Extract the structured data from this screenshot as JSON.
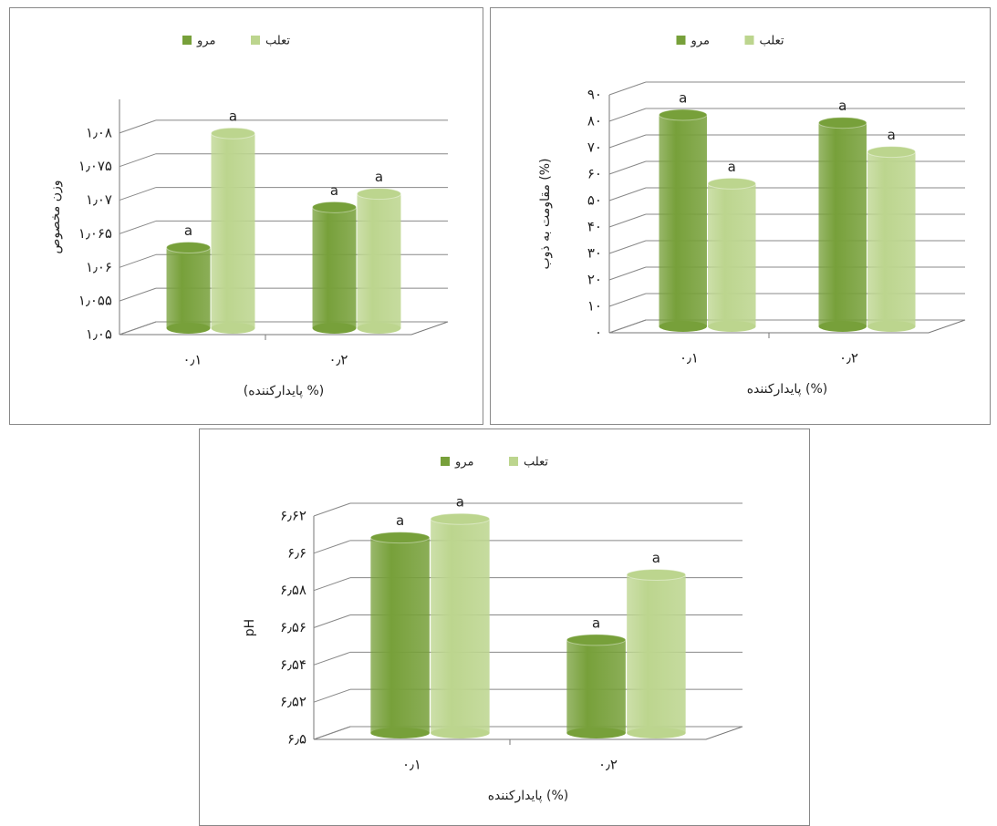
{
  "chart_data": [
    {
      "type": "bar3d",
      "ylabel": "وزن مخصوص",
      "xlabel": "(پایدارکننده %)",
      "categories": [
        "۰٫۱",
        "۰٫۲"
      ],
      "series": [
        {
          "name": "مرو",
          "color": "#77a03a",
          "values": [
            1.062,
            1.068
          ],
          "letters": [
            "a",
            "a"
          ]
        },
        {
          "name": "تعلب",
          "color": "#bcd58e",
          "values": [
            1.079,
            1.07
          ],
          "letters": [
            "a",
            "a"
          ]
        }
      ],
      "ylim": [
        1.05,
        1.085
      ],
      "yticks": [
        {
          "value": 1.05,
          "label": "۱٫۰۵"
        },
        {
          "value": 1.055,
          "label": "۱٫۰۵۵"
        },
        {
          "value": 1.06,
          "label": "۱٫۰۶"
        },
        {
          "value": 1.065,
          "label": "۱٫۰۶۵"
        },
        {
          "value": 1.07,
          "label": "۱٫۰۷"
        },
        {
          "value": 1.075,
          "label": "۱٫۰۷۵"
        },
        {
          "value": 1.08,
          "label": "۱٫۰۸"
        }
      ],
      "grid": true
    },
    {
      "type": "bar3d",
      "ylabel": "مقاومت به ذوب (%)",
      "xlabel": "پایدارکننده (%)",
      "categories": [
        "۰٫۱",
        "۰٫۲"
      ],
      "series": [
        {
          "name": "مرو",
          "color": "#77a03a",
          "values": [
            80,
            77
          ],
          "letters": [
            "a",
            "a"
          ]
        },
        {
          "name": "تعلب",
          "color": "#bcd58e",
          "values": [
            54,
            66
          ],
          "letters": [
            "a",
            "a"
          ]
        }
      ],
      "ylim": [
        0,
        90
      ],
      "yticks": [
        {
          "value": 0,
          "label": "۰"
        },
        {
          "value": 10,
          "label": "۱۰"
        },
        {
          "value": 20,
          "label": "۲۰"
        },
        {
          "value": 30,
          "label": "۳۰"
        },
        {
          "value": 40,
          "label": "۴۰"
        },
        {
          "value": 50,
          "label": "۵۰"
        },
        {
          "value": 60,
          "label": "۶۰"
        },
        {
          "value": 70,
          "label": "۷۰"
        },
        {
          "value": 80,
          "label": "۸۰"
        },
        {
          "value": 90,
          "label": "۹۰"
        }
      ],
      "grid": true
    },
    {
      "type": "bar3d",
      "ylabel": "pH",
      "xlabel": "پایدارکننده (%)",
      "categories": [
        "۰٫۱",
        "۰٫۲"
      ],
      "series": [
        {
          "name": "مرو",
          "color": "#77a03a",
          "values": [
            6.605,
            6.55
          ],
          "letters": [
            "a",
            "a"
          ]
        },
        {
          "name": "تعلب",
          "color": "#bcd58e",
          "values": [
            6.615,
            6.585
          ],
          "letters": [
            "a",
            "a"
          ]
        }
      ],
      "ylim": [
        6.5,
        6.62
      ],
      "yticks": [
        {
          "value": 6.5,
          "label": "۶٫۵"
        },
        {
          "value": 6.52,
          "label": "۶٫۵۲"
        },
        {
          "value": 6.54,
          "label": "۶٫۵۴"
        },
        {
          "value": 6.56,
          "label": "۶٫۵۶"
        },
        {
          "value": 6.58,
          "label": "۶٫۵۸"
        },
        {
          "value": 6.6,
          "label": "۶٫۶"
        },
        {
          "value": 6.62,
          "label": "۶٫۶۲"
        }
      ],
      "grid": true
    }
  ]
}
